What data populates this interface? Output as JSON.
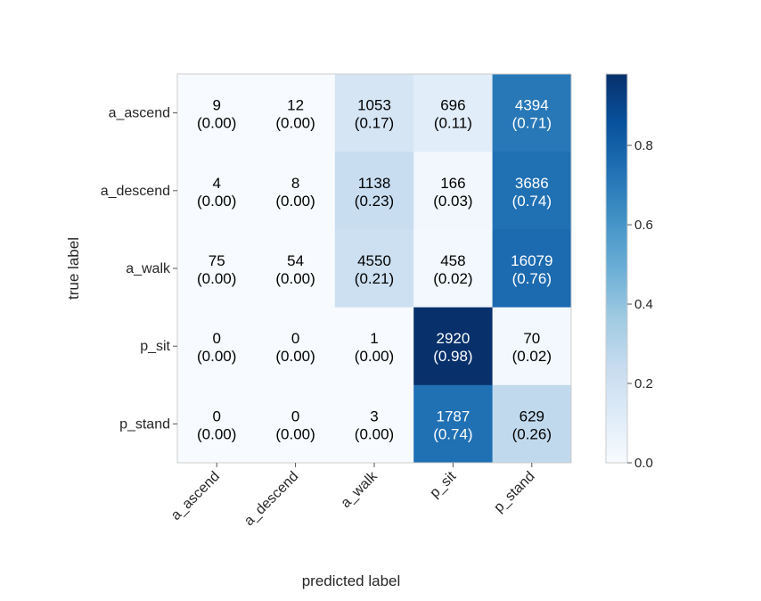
{
  "chart_data": {
    "type": "heatmap",
    "xlabel": "predicted label",
    "ylabel": "true label",
    "x_categories": [
      "a_ascend",
      "a_descend",
      "a_walk",
      "p_sit",
      "p_stand"
    ],
    "y_categories": [
      "a_ascend",
      "a_descend",
      "a_walk",
      "p_sit",
      "p_stand"
    ],
    "counts": [
      [
        9,
        12,
        1053,
        696,
        4394
      ],
      [
        4,
        8,
        1138,
        166,
        3686
      ],
      [
        75,
        54,
        4550,
        458,
        16079
      ],
      [
        0,
        0,
        1,
        2920,
        70
      ],
      [
        0,
        0,
        3,
        1787,
        629
      ]
    ],
    "fractions": [
      [
        "(0.00)",
        "(0.00)",
        "(0.17)",
        "(0.11)",
        "(0.71)"
      ],
      [
        "(0.00)",
        "(0.00)",
        "(0.23)",
        "(0.03)",
        "(0.74)"
      ],
      [
        "(0.00)",
        "(0.00)",
        "(0.21)",
        "(0.02)",
        "(0.76)"
      ],
      [
        "(0.00)",
        "(0.00)",
        "(0.00)",
        "(0.98)",
        "(0.02)"
      ],
      [
        "(0.00)",
        "(0.00)",
        "(0.00)",
        "(0.74)",
        "(0.26)"
      ]
    ],
    "colorbar": {
      "range": [
        0.0,
        0.98
      ],
      "ticks": [
        0.0,
        0.2,
        0.4,
        0.6,
        0.8
      ],
      "tick_labels": [
        "0.0",
        "0.2",
        "0.4",
        "0.6",
        "0.8"
      ],
      "colormap": "Blues",
      "color_low": "#f7fbff",
      "color_high": "#08306b"
    },
    "grid": false
  }
}
